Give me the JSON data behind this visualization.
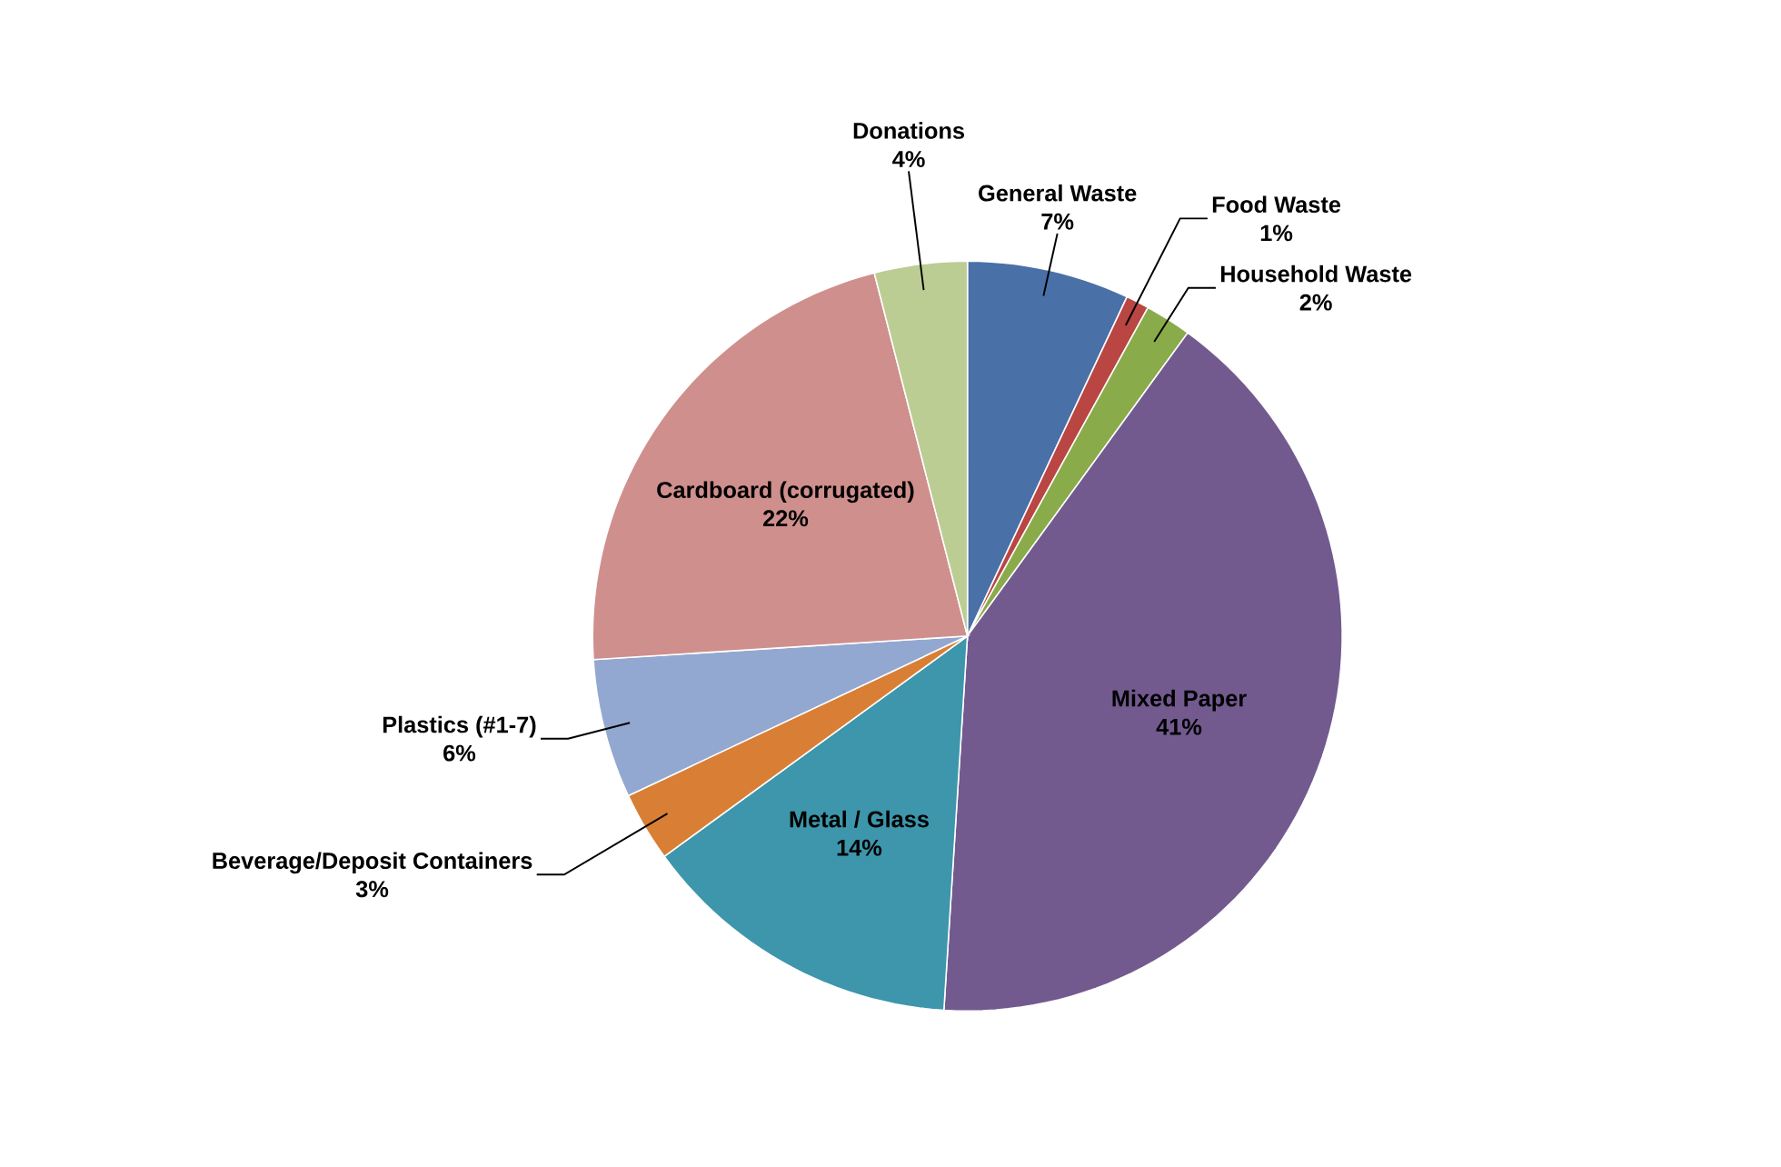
{
  "chart_data": {
    "type": "pie",
    "categories": [
      "General Waste",
      "Food Waste",
      "Household Waste",
      "Mixed Paper",
      "Metal / Glass",
      "Beverage/Deposit Containers",
      "Plastics (#1-7)",
      "Cardboard (corrugated)",
      "Donations"
    ],
    "values": [
      7,
      1,
      2,
      41,
      14,
      3,
      6,
      22,
      4
    ],
    "value_labels": [
      "7%",
      "1%",
      "2%",
      "41%",
      "14%",
      "3%",
      "6%",
      "22%",
      "4%"
    ],
    "colors": [
      "#4a70a8",
      "#b94643",
      "#8aab4a",
      "#725a8f",
      "#3d96ab",
      "#d97f35",
      "#93a8d0",
      "#cf8f8d",
      "#bccd94"
    ]
  }
}
